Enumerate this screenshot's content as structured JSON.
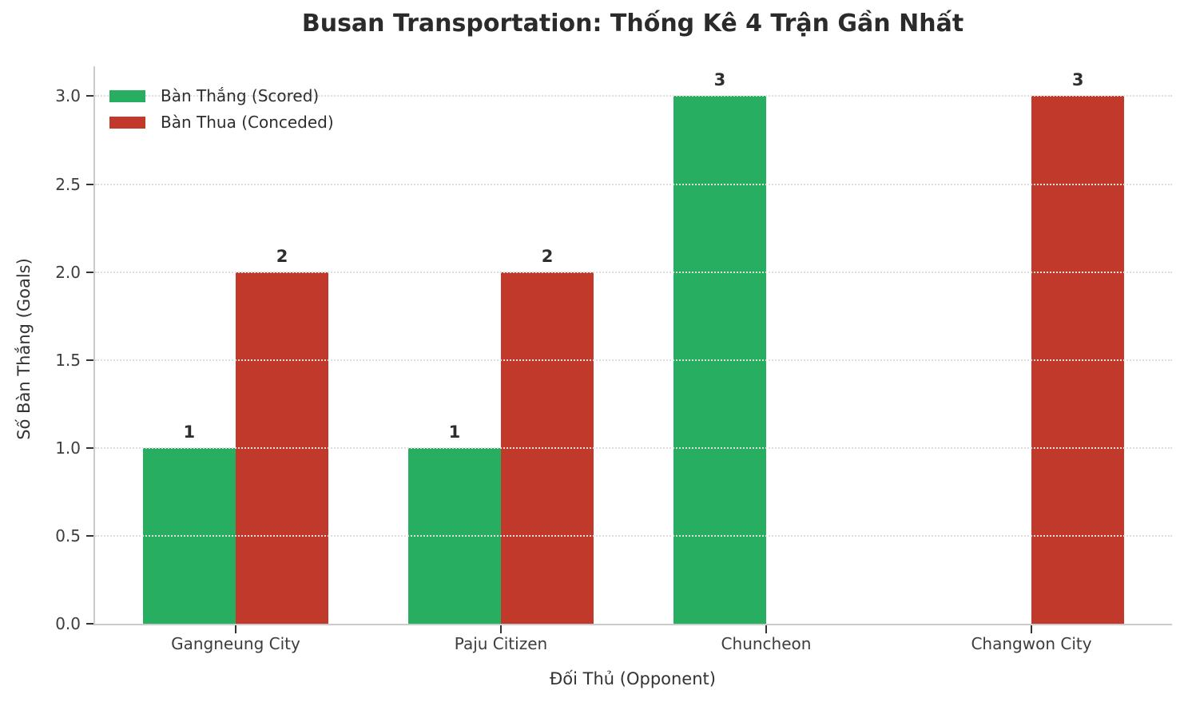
{
  "chart_data": {
    "type": "bar",
    "title": "Busan Transportation: Thống Kê 4 Trận Gần Nhất",
    "xlabel": "Đối Thủ (Opponent)",
    "ylabel": "Số Bàn Thắng (Goals)",
    "categories": [
      "Gangneung City",
      "Paju Citizen",
      "Chuncheon",
      "Changwon City"
    ],
    "series": [
      {
        "name": "Bàn Thắng (Scored)",
        "color": "#27ae60",
        "values": [
          1,
          1,
          3,
          0
        ]
      },
      {
        "name": "Bàn Thua (Conceded)",
        "color": "#c0392b",
        "values": [
          2,
          2,
          0,
          3
        ]
      }
    ],
    "y_ticks": [
      0.0,
      0.5,
      1.0,
      1.5,
      2.0,
      2.5,
      3.0
    ],
    "y_tick_labels": [
      "0.0",
      "0.5",
      "1.0",
      "1.5",
      "2.0",
      "2.5",
      "3.0"
    ],
    "ylim": [
      0,
      3.17
    ],
    "xlim": [
      -0.53,
      3.53
    ],
    "bar_width": 0.35,
    "bar_value_labels": [
      "1",
      "2",
      "1",
      "2",
      "3",
      "3"
    ],
    "grid": "y-dotted",
    "legend_position": "upper-left"
  }
}
